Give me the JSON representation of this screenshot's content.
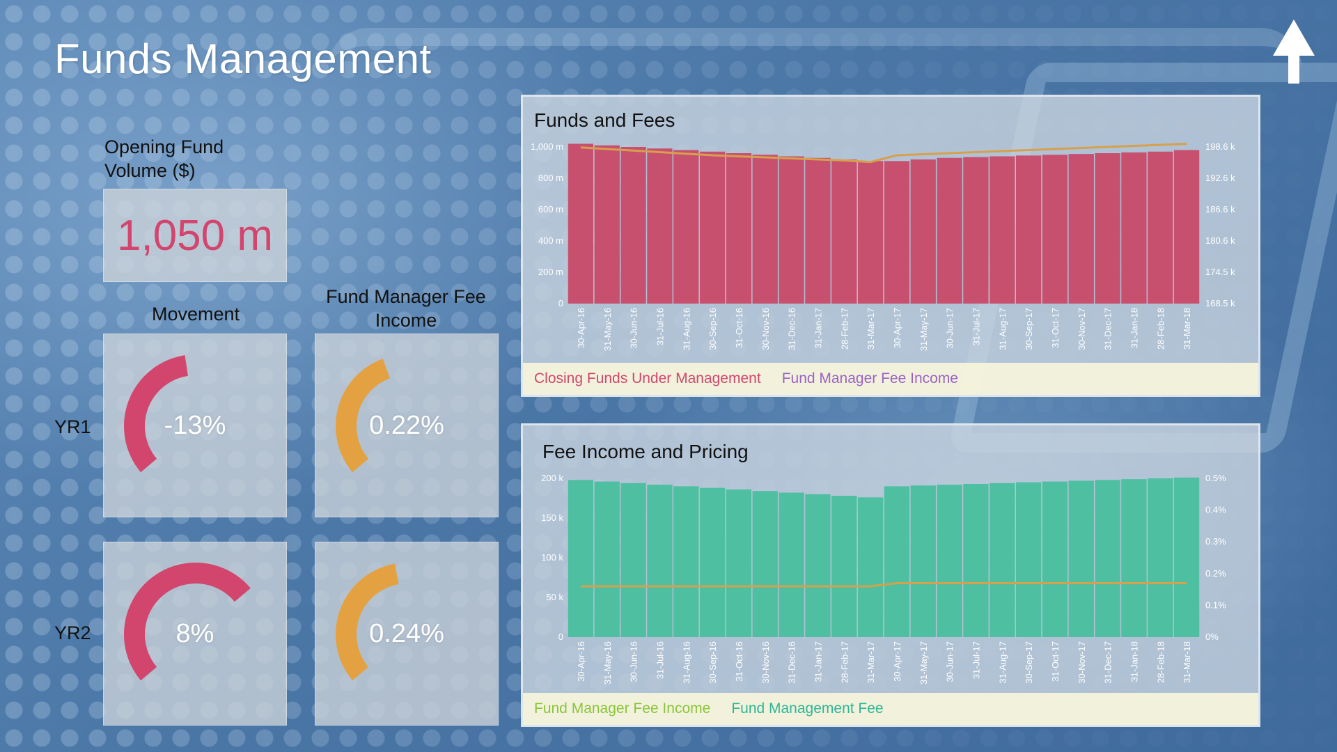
{
  "page": {
    "title": "Funds Management",
    "nav_icon": "up-arrow-icon"
  },
  "opening": {
    "label": "Opening Fund Volume ($)",
    "value": "1,050 m",
    "value_color": "#d2466e"
  },
  "movement": {
    "label": "Movement",
    "color": "#d2466e"
  },
  "fee_income": {
    "label": "Fund Manager Fee Income",
    "color": "#e4a142"
  },
  "rows": [
    {
      "label": "YR1",
      "movement_text": "-13%",
      "movement_value": -13,
      "fee_text": "0.22%",
      "fee_value": 0.22
    },
    {
      "label": "YR2",
      "movement_text": "8%",
      "movement_value": 8,
      "fee_text": "0.24%",
      "fee_value": 0.24
    }
  ],
  "chart_data": [
    {
      "type": "bar",
      "title": "Funds and Fees",
      "categories": [
        "30-Apr-16",
        "31-May-16",
        "30-Jun-16",
        "31-Jul-16",
        "31-Aug-16",
        "30-Sep-16",
        "31-Oct-16",
        "30-Nov-16",
        "31-Dec-16",
        "31-Jan-17",
        "28-Feb-17",
        "31-Mar-17",
        "30-Apr-17",
        "31-May-17",
        "30-Jun-17",
        "31-Jul-17",
        "31-Aug-17",
        "30-Sep-17",
        "31-Oct-17",
        "30-Nov-17",
        "31-Dec-17",
        "31-Jan-18",
        "28-Feb-18",
        "31-Mar-18"
      ],
      "series": [
        {
          "name": "Closing Funds Under Management",
          "kind": "bar",
          "axis": "left",
          "color": "#c8506f",
          "values": [
            1020,
            1010,
            1000,
            990,
            980,
            970,
            960,
            950,
            940,
            930,
            920,
            910,
            910,
            920,
            930,
            935,
            940,
            945,
            950,
            955,
            960,
            965,
            970,
            980
          ]
        },
        {
          "name": "Fund Manager Fee Income",
          "kind": "line",
          "axis": "right",
          "color": "#d6a04c",
          "values": [
            198.5,
            198.2,
            197.9,
            197.6,
            197.3,
            197.0,
            196.8,
            196.6,
            196.4,
            196.2,
            196.0,
            195.7,
            197.0,
            197.2,
            197.4,
            197.6,
            197.8,
            198.0,
            198.2,
            198.4,
            198.6,
            198.8,
            199.0,
            199.2
          ]
        }
      ],
      "left_axis": {
        "ticks": [
          "0",
          "200 m",
          "400 m",
          "600 m",
          "800 m",
          "1,000 m"
        ],
        "min": 0,
        "max": 1000
      },
      "right_axis": {
        "ticks": [
          "168.5 k",
          "174.5 k",
          "180.6 k",
          "186.6 k",
          "192.6 k",
          "198.6 k"
        ],
        "min": 168.5,
        "max": 198.6
      },
      "legend": [
        "Closing Funds Under Management",
        "Fund Manager  Fee Income"
      ],
      "legend_colors": [
        "#d2466e",
        "#9a62c6"
      ],
      "legend_placement": "bottom",
      "grid": false
    },
    {
      "type": "bar",
      "title": "Fee Income and Pricing",
      "categories": [
        "30-Apr-16",
        "31-May-16",
        "30-Jun-16",
        "31-Jul-16",
        "31-Aug-16",
        "30-Sep-16",
        "31-Oct-16",
        "30-Nov-16",
        "31-Dec-16",
        "31-Jan-17",
        "28-Feb-17",
        "31-Mar-17",
        "30-Apr-17",
        "31-May-17",
        "30-Jun-17",
        "31-Jul-17",
        "31-Aug-17",
        "30-Sep-17",
        "31-Oct-17",
        "30-Nov-17",
        "31-Dec-17",
        "31-Jan-18",
        "28-Feb-18",
        "31-Mar-18"
      ],
      "series": [
        {
          "name": "Fund Manager Fee Income",
          "kind": "bar",
          "axis": "left",
          "color": "#4fbfa1",
          "values": [
            198000,
            196000,
            194000,
            192000,
            190000,
            188000,
            186000,
            184000,
            182000,
            180000,
            178000,
            176000,
            190000,
            191000,
            192000,
            193000,
            194000,
            195000,
            196000,
            197000,
            198000,
            199000,
            200000,
            201000
          ]
        },
        {
          "name": "Fund Management Fee",
          "kind": "line",
          "axis": "right",
          "color": "#d6a04c",
          "values": [
            0.16,
            0.16,
            0.16,
            0.16,
            0.16,
            0.16,
            0.16,
            0.16,
            0.16,
            0.16,
            0.16,
            0.16,
            0.17,
            0.17,
            0.17,
            0.17,
            0.17,
            0.17,
            0.17,
            0.17,
            0.17,
            0.17,
            0.17,
            0.17
          ]
        }
      ],
      "left_axis": {
        "ticks": [
          "0",
          "50 k",
          "100 k",
          "150 k",
          "200 k"
        ],
        "min": 0,
        "max": 200000
      },
      "right_axis": {
        "ticks": [
          "0%",
          "0.1%",
          "0.2%",
          "0.3%",
          "0.4%",
          "0.5%"
        ],
        "min": 0,
        "max": 0.5
      },
      "legend": [
        "Fund Manager  Fee Income",
        "Fund Management  Fee"
      ],
      "legend_colors": [
        "#8bc43a",
        "#2fb596"
      ],
      "legend_placement": "bottom",
      "grid": false
    }
  ]
}
